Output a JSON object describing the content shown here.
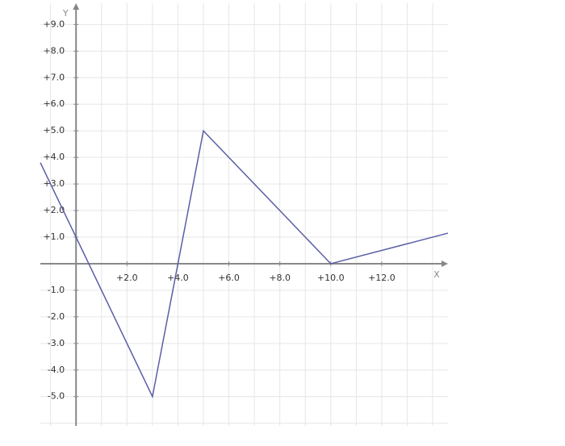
{
  "chart_data": {
    "type": "line",
    "x_label": "X",
    "y_label": "Y",
    "x": [
      -1.4,
      3,
      5,
      10,
      14.6
    ],
    "series": [
      {
        "color": "#5b5ea6",
        "values": [
          3.8,
          -5,
          5,
          0,
          1.15
        ]
      }
    ],
    "xlim": [
      -1.4,
      14.6
    ],
    "ylim": [
      -6.1,
      9.8
    ],
    "xticks": [
      {
        "value": 2,
        "label": "+2.0"
      },
      {
        "value": 4,
        "label": "+4.0"
      },
      {
        "value": 6,
        "label": "+6.0"
      },
      {
        "value": 8,
        "label": "+8.0"
      },
      {
        "value": 10,
        "label": "+10.0"
      },
      {
        "value": 12,
        "label": "+12.0"
      }
    ],
    "yticks": [
      {
        "value": -5,
        "label": "-5.0"
      },
      {
        "value": -4,
        "label": "-4.0"
      },
      {
        "value": -3,
        "label": "-3.0"
      },
      {
        "value": -2,
        "label": "-2.0"
      },
      {
        "value": -1,
        "label": "-1.0"
      },
      {
        "value": 1,
        "label": "+1.0"
      },
      {
        "value": 2,
        "label": "+2.0"
      },
      {
        "value": 3,
        "label": "+3.0"
      },
      {
        "value": 4,
        "label": "+4.0"
      },
      {
        "value": 5,
        "label": "+5.0"
      },
      {
        "value": 6,
        "label": "+6.0"
      },
      {
        "value": 7,
        "label": "+7.0"
      },
      {
        "value": 8,
        "label": "+8.0"
      },
      {
        "value": 9,
        "label": "+9.0"
      }
    ],
    "grid": true,
    "xgrid": [
      -1,
      0,
      1,
      2,
      3,
      4,
      5,
      6,
      7,
      8,
      9,
      10,
      11,
      12,
      13,
      14
    ],
    "ygrid": [
      -6,
      -5,
      -4,
      -3,
      -2,
      -1,
      0,
      1,
      2,
      3,
      4,
      5,
      6,
      7,
      8,
      9
    ]
  }
}
